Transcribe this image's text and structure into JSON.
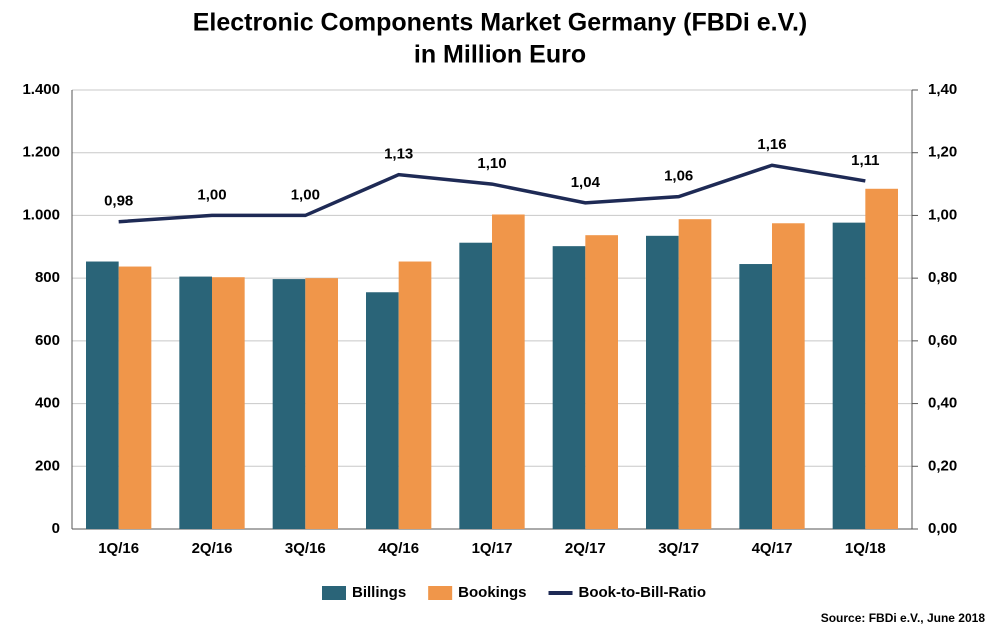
{
  "chart_data": {
    "type": "bar_line",
    "title": [
      "Electronic Components Market Germany (FBDi e.V.)",
      "in Million Euro"
    ],
    "source": "Source: FBDi e.V., June 2018",
    "categories": [
      "1Q/16",
      "2Q/16",
      "3Q/16",
      "4Q/16",
      "1Q/17",
      "2Q/17",
      "3Q/17",
      "4Q/17",
      "1Q/18"
    ],
    "series": [
      {
        "name": "Billings",
        "color": "#2a6478",
        "type": "bar",
        "values": [
          853,
          805,
          797,
          755,
          913,
          902,
          935,
          845,
          977
        ]
      },
      {
        "name": "Bookings",
        "color": "#f0964a",
        "type": "bar",
        "values": [
          837,
          803,
          800,
          853,
          1003,
          937,
          988,
          975,
          1085
        ]
      },
      {
        "name": "Book-to-Bill-Ratio",
        "color": "#1e2a55",
        "type": "line",
        "axis": "y2",
        "values": [
          0.98,
          1.0,
          1.0,
          1.13,
          1.1,
          1.04,
          1.06,
          1.16,
          1.11
        ],
        "value_labels": [
          "0,98",
          "1,00",
          "1,00",
          "1,13",
          "1,10",
          "1,04",
          "1,06",
          "1,16",
          "1,11"
        ]
      }
    ],
    "ylim": [
      0,
      1400
    ],
    "yticks": [
      0,
      200,
      400,
      600,
      800,
      {
        "value": 1000,
        "label": "1.000"
      },
      {
        "value": 1200,
        "label": "1.200"
      },
      {
        "value": 1400,
        "label": "1.400"
      }
    ],
    "y2lim": [
      0,
      1.4
    ],
    "y2ticks": [
      {
        "value": 0,
        "label": "0,00"
      },
      {
        "value": 0.2,
        "label": "0,20"
      },
      {
        "value": 0.4,
        "label": "0,40"
      },
      {
        "value": 0.6,
        "label": "0,60"
      },
      {
        "value": 0.8,
        "label": "0,80"
      },
      {
        "value": 1.0,
        "label": "1,00"
      },
      {
        "value": 1.2,
        "label": "1,20"
      },
      {
        "value": 1.4,
        "label": "1,40"
      }
    ],
    "grid": true,
    "legend": "bottom"
  }
}
